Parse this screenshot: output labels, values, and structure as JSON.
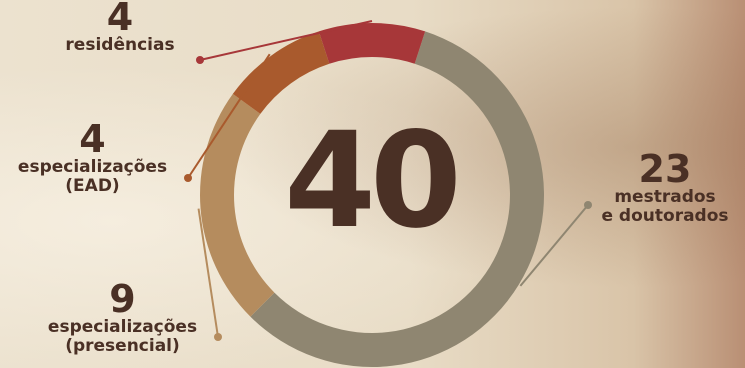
{
  "chart_data": {
    "type": "pie",
    "total": "40",
    "categories": [
      "mestrados e doutorados",
      "especializações (presencial)",
      "especializações (EAD)",
      "residências"
    ],
    "values": [
      23,
      9,
      4,
      4
    ],
    "colors": [
      "#8f8671",
      "#b58c5e",
      "#a95a2d",
      "#a73739"
    ],
    "labels": [
      {
        "value": "23",
        "lines": [
          "mestrados",
          "e doutorados"
        ]
      },
      {
        "value": "9",
        "lines": [
          "especializações",
          "(presencial)"
        ]
      },
      {
        "value": "4",
        "lines": [
          "especializações",
          "(EAD)"
        ]
      },
      {
        "value": "4",
        "lines": [
          "residências"
        ]
      }
    ]
  }
}
